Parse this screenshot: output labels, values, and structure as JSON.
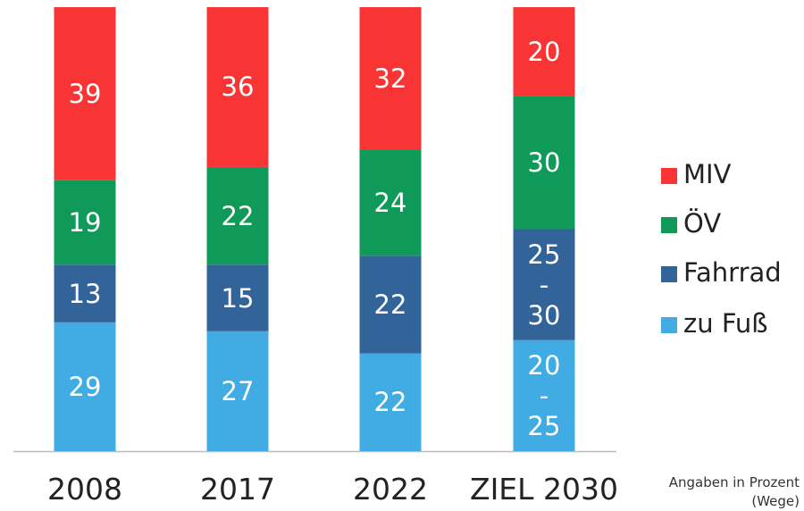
{
  "chart_data": {
    "type": "stacked_bar",
    "categories": [
      "2008",
      "2017",
      "2022",
      "ZIEL 2030"
    ],
    "series": [
      {
        "name": "zu Fuß",
        "color": "#41ace3",
        "values": [
          29,
          27,
          22,
          25
        ],
        "value_labels": [
          "29",
          "27",
          "22",
          "20 - 25"
        ]
      },
      {
        "name": "Fahrrad",
        "color": "#32649a",
        "values": [
          13,
          15,
          22,
          25
        ],
        "value_labels": [
          "13",
          "15",
          "22",
          "25 - 30"
        ]
      },
      {
        "name": "ÖV",
        "color": "#0f9a5a",
        "values": [
          19,
          22,
          24,
          30
        ]
      },
      {
        "name": "MIV",
        "color": "#f93434",
        "values": [
          39,
          36,
          32,
          20
        ]
      }
    ],
    "ylim": [
      0,
      100
    ],
    "legend": "right",
    "note": "Angaben in Prozent (Wege)"
  }
}
